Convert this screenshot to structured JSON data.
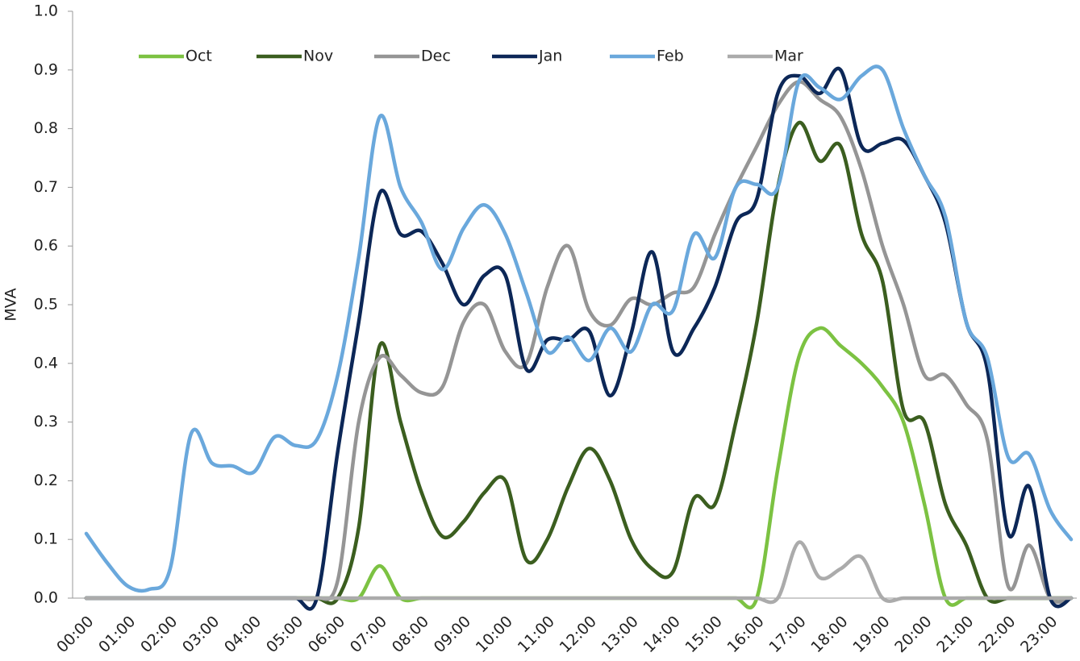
{
  "chart_data": {
    "type": "line",
    "y_label": "MVA",
    "categories": [
      "00:00",
      null,
      "01:00",
      null,
      "02:00",
      null,
      "03:00",
      null,
      "04:00",
      null,
      "05:00",
      null,
      "06:00",
      null,
      "07:00",
      null,
      "08:00",
      null,
      "09:00",
      null,
      "10:00",
      null,
      "11:00",
      null,
      "12:00",
      null,
      "13:00",
      null,
      "14:00",
      null,
      "15:00",
      null,
      "16:00",
      null,
      "17:00",
      null,
      "18:00",
      null,
      "19:00",
      null,
      "20:00",
      null,
      "21:00",
      null,
      "22:00",
      null,
      "23:00",
      null
    ],
    "ylim": [
      0,
      1
    ],
    "yticks": [
      {
        "value": 0,
        "label": "0.0"
      },
      0.1,
      0.2,
      0.3,
      0.4,
      0.5,
      0.6,
      0.7,
      0.8,
      0.9,
      {
        "value": 1,
        "label": "1.0"
      }
    ],
    "grid": false,
    "legend": "top",
    "series": [
      {
        "name": "Oct",
        "color": "#7cc242",
        "values": [
          0,
          0,
          0,
          0,
          0,
          0,
          0,
          0,
          0,
          0,
          0,
          0,
          0,
          0,
          0.055,
          0,
          0,
          0,
          0,
          0,
          0,
          0,
          0,
          0,
          0,
          0,
          0,
          0,
          0,
          0,
          0,
          0,
          0,
          0.22,
          0.41,
          0.46,
          0.43,
          0.4,
          0.36,
          0.3,
          0.16,
          0,
          0,
          0,
          0,
          0,
          0,
          0
        ]
      },
      {
        "name": "Nov",
        "color": "#3b5e1f",
        "values": [
          0,
          0,
          0,
          0,
          0,
          0,
          0,
          0,
          0,
          0,
          0,
          0,
          0,
          0.12,
          0.43,
          0.3,
          0.18,
          0.105,
          0.13,
          0.18,
          0.2,
          0.065,
          0.1,
          0.19,
          0.255,
          0.2,
          0.1,
          0.05,
          0.045,
          0.17,
          0.16,
          0.3,
          0.47,
          0.7,
          0.81,
          0.745,
          0.77,
          0.62,
          0.54,
          0.32,
          0.3,
          0.16,
          0.09,
          0,
          0,
          0,
          0,
          0
        ]
      },
      {
        "name": "Dec",
        "color": "#959595",
        "values": [
          0,
          0,
          0,
          0,
          0,
          0,
          0,
          0,
          0,
          0,
          0,
          0,
          0.03,
          0.3,
          0.41,
          0.38,
          0.35,
          0.36,
          0.47,
          0.5,
          0.42,
          0.4,
          0.53,
          0.6,
          0.49,
          0.465,
          0.51,
          0.5,
          0.52,
          0.53,
          0.62,
          0.7,
          0.77,
          0.84,
          0.88,
          0.85,
          0.82,
          0.73,
          0.6,
          0.5,
          0.38,
          0.38,
          0.33,
          0.27,
          0.02,
          0.09,
          0,
          0
        ]
      },
      {
        "name": "Jan",
        "color": "#0c2757",
        "values": [
          0,
          0,
          0,
          0,
          0,
          0,
          0,
          0,
          0,
          0,
          0,
          0,
          0.25,
          0.47,
          0.69,
          0.62,
          0.625,
          0.57,
          0.5,
          0.55,
          0.55,
          0.39,
          0.44,
          0.44,
          0.455,
          0.345,
          0.45,
          0.59,
          0.42,
          0.46,
          0.53,
          0.64,
          0.68,
          0.86,
          0.89,
          0.86,
          0.9,
          0.77,
          0.775,
          0.78,
          0.72,
          0.64,
          0.47,
          0.39,
          0.11,
          0.19,
          0,
          0
        ]
      },
      {
        "name": "Feb",
        "color": "#6aa8dc",
        "values": [
          0.11,
          0.06,
          0.02,
          0.015,
          0.05,
          0.28,
          0.23,
          0.225,
          0.215,
          0.275,
          0.26,
          0.27,
          0.38,
          0.58,
          0.82,
          0.7,
          0.64,
          0.56,
          0.63,
          0.67,
          0.62,
          0.52,
          0.42,
          0.445,
          0.405,
          0.46,
          0.42,
          0.5,
          0.49,
          0.62,
          0.58,
          0.7,
          0.705,
          0.7,
          0.88,
          0.87,
          0.85,
          0.89,
          0.9,
          0.8,
          0.72,
          0.65,
          0.47,
          0.41,
          0.24,
          0.245,
          0.15,
          0.1
        ]
      },
      {
        "name": "Mar",
        "color": "#ababab",
        "values": [
          0,
          0,
          0,
          0,
          0,
          0,
          0,
          0,
          0,
          0,
          0,
          0,
          0,
          0,
          0,
          0,
          0,
          0,
          0,
          0,
          0,
          0,
          0,
          0,
          0,
          0,
          0,
          0,
          0,
          0,
          0,
          0,
          0,
          0,
          0.095,
          0.035,
          0.05,
          0.07,
          0,
          0,
          0,
          0,
          0,
          0,
          0,
          0,
          0,
          0
        ]
      }
    ]
  }
}
